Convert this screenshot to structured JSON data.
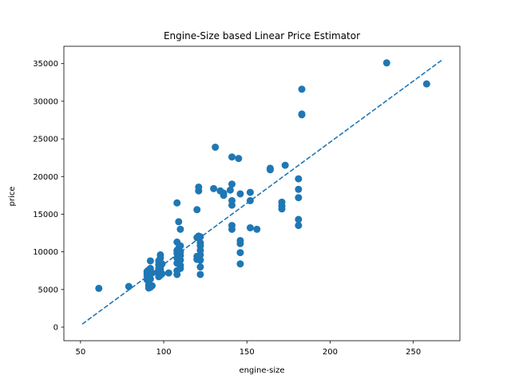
{
  "chart_data": {
    "type": "scatter",
    "title": "Engine-Size based Linear Price Estimator",
    "xlabel": "engine-size",
    "ylabel": "price",
    "xlim": [
      40,
      278
    ],
    "ylim": [
      -1800,
      37300
    ],
    "x_ticks": [
      50,
      100,
      150,
      200,
      250
    ],
    "y_ticks": [
      0,
      5000,
      10000,
      15000,
      20000,
      25000,
      30000,
      35000
    ],
    "grid": false,
    "point_color": "#1f77b4",
    "line_color": "#1f77b4",
    "series": [
      {
        "type": "scatter",
        "points": [
          [
            61,
            5150
          ],
          [
            79,
            5400
          ],
          [
            90,
            6300
          ],
          [
            90,
            6800
          ],
          [
            90,
            7100
          ],
          [
            90,
            7400
          ],
          [
            91,
            5200
          ],
          [
            91,
            5600
          ],
          [
            91,
            6100
          ],
          [
            91,
            6600
          ],
          [
            91,
            7000
          ],
          [
            91,
            7600
          ],
          [
            92,
            5300
          ],
          [
            92,
            6400
          ],
          [
            92,
            8800
          ],
          [
            92,
            7800
          ],
          [
            93,
            7200
          ],
          [
            93,
            5500
          ],
          [
            97,
            6700
          ],
          [
            97,
            7000
          ],
          [
            97,
            7400
          ],
          [
            97,
            7800
          ],
          [
            97,
            8300
          ],
          [
            97,
            8800
          ],
          [
            98,
            6900
          ],
          [
            98,
            7300
          ],
          [
            98,
            7700
          ],
          [
            98,
            8000
          ],
          [
            98,
            8600
          ],
          [
            98,
            9200
          ],
          [
            98,
            9600
          ],
          [
            99,
            7100
          ],
          [
            99,
            8400
          ],
          [
            103,
            7200
          ],
          [
            108,
            7000
          ],
          [
            108,
            7500
          ],
          [
            108,
            8500
          ],
          [
            108,
            9200
          ],
          [
            108,
            9800
          ],
          [
            108,
            10200
          ],
          [
            108,
            11300
          ],
          [
            108,
            16500
          ],
          [
            109,
            14000
          ],
          [
            109,
            10500
          ],
          [
            110,
            7800
          ],
          [
            110,
            8200
          ],
          [
            110,
            8900
          ],
          [
            110,
            9500
          ],
          [
            110,
            10000
          ],
          [
            110,
            10800
          ],
          [
            110,
            13000
          ],
          [
            120,
            9000
          ],
          [
            120,
            9400
          ],
          [
            120,
            11900
          ],
          [
            120,
            15600
          ],
          [
            121,
            12100
          ],
          [
            121,
            18100
          ],
          [
            121,
            18600
          ],
          [
            122,
            7000
          ],
          [
            122,
            8000
          ],
          [
            122,
            8900
          ],
          [
            122,
            9600
          ],
          [
            122,
            10200
          ],
          [
            122,
            10800
          ],
          [
            122,
            11200
          ],
          [
            122,
            12000
          ],
          [
            130,
            18400
          ],
          [
            131,
            23900
          ],
          [
            134,
            18100
          ],
          [
            136,
            17500
          ],
          [
            136,
            17800
          ],
          [
            140,
            18200
          ],
          [
            141,
            13000
          ],
          [
            141,
            13500
          ],
          [
            141,
            16200
          ],
          [
            141,
            16800
          ],
          [
            141,
            19000
          ],
          [
            141,
            22600
          ],
          [
            145,
            22400
          ],
          [
            146,
            8400
          ],
          [
            146,
            9900
          ],
          [
            146,
            11100
          ],
          [
            146,
            11500
          ],
          [
            146,
            17700
          ],
          [
            152,
            13200
          ],
          [
            152,
            16800
          ],
          [
            152,
            17900
          ],
          [
            156,
            13000
          ],
          [
            164,
            20900
          ],
          [
            164,
            21100
          ],
          [
            171,
            15700
          ],
          [
            171,
            16100
          ],
          [
            171,
            16600
          ],
          [
            173,
            21500
          ],
          [
            181,
            13500
          ],
          [
            181,
            14300
          ],
          [
            181,
            17200
          ],
          [
            181,
            18300
          ],
          [
            181,
            19700
          ],
          [
            183,
            28200
          ],
          [
            183,
            28300
          ],
          [
            183,
            31600
          ],
          [
            234,
            35100
          ],
          [
            258,
            32300
          ]
        ]
      },
      {
        "type": "line",
        "style": "dashed",
        "x": [
          51,
          268
        ],
        "y": [
          400,
          35600
        ]
      }
    ]
  }
}
